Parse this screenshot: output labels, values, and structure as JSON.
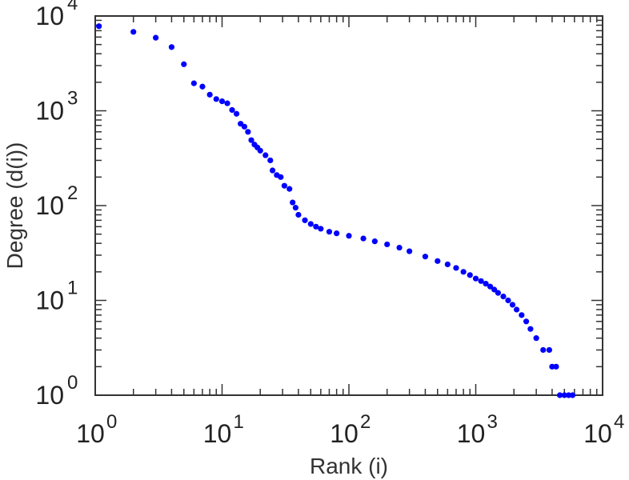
{
  "chart_data": {
    "type": "scatter",
    "title": "",
    "xlabel": "Rank (i)",
    "ylabel": "Degree (d(i))",
    "xscale": "log",
    "yscale": "log",
    "xlim": [
      1,
      10000
    ],
    "ylim": [
      1,
      10000
    ],
    "grid": false,
    "legend": "none",
    "x_tick_labels": [
      {
        "base": "10",
        "exp": "0"
      },
      {
        "base": "10",
        "exp": "1"
      },
      {
        "base": "10",
        "exp": "2"
      },
      {
        "base": "10",
        "exp": "3"
      },
      {
        "base": "10",
        "exp": "4"
      }
    ],
    "y_tick_labels": [
      {
        "base": "10",
        "exp": "0"
      },
      {
        "base": "10",
        "exp": "1"
      },
      {
        "base": "10",
        "exp": "2"
      },
      {
        "base": "10",
        "exp": "3"
      },
      {
        "base": "10",
        "exp": "4"
      }
    ],
    "series": [
      {
        "color": "#0000ff",
        "points": [
          [
            1.07,
            7800
          ],
          [
            2,
            6800
          ],
          [
            3,
            5900
          ],
          [
            4,
            4700
          ],
          [
            5,
            3100
          ],
          [
            6,
            1950
          ],
          [
            7,
            1800
          ],
          [
            8,
            1480
          ],
          [
            9,
            1330
          ],
          [
            10,
            1260
          ],
          [
            11,
            1200
          ],
          [
            12,
            1020
          ],
          [
            13,
            930
          ],
          [
            14,
            730
          ],
          [
            15,
            680
          ],
          [
            16,
            600
          ],
          [
            17,
            490
          ],
          [
            18,
            440
          ],
          [
            19,
            410
          ],
          [
            20,
            380
          ],
          [
            22,
            340
          ],
          [
            24,
            300
          ],
          [
            25,
            235
          ],
          [
            27,
            210
          ],
          [
            29,
            200
          ],
          [
            31,
            162
          ],
          [
            34,
            150
          ],
          [
            36,
            108
          ],
          [
            38,
            95
          ],
          [
            40,
            80
          ],
          [
            45,
            70
          ],
          [
            50,
            64
          ],
          [
            55,
            60
          ],
          [
            60,
            57
          ],
          [
            70,
            53
          ],
          [
            80,
            51
          ],
          [
            100,
            48
          ],
          [
            130,
            45
          ],
          [
            160,
            42
          ],
          [
            200,
            39
          ],
          [
            250,
            36
          ],
          [
            300,
            33
          ],
          [
            400,
            29
          ],
          [
            500,
            26
          ],
          [
            600,
            24
          ],
          [
            700,
            22
          ],
          [
            800,
            20
          ],
          [
            900,
            18.5
          ],
          [
            1000,
            17
          ],
          [
            1100,
            16
          ],
          [
            1200,
            15
          ],
          [
            1300,
            14
          ],
          [
            1400,
            13
          ],
          [
            1500,
            12
          ],
          [
            1650,
            11
          ],
          [
            1800,
            10
          ],
          [
            1950,
            9
          ],
          [
            2100,
            8
          ],
          [
            2300,
            7
          ],
          [
            2500,
            6
          ],
          [
            2700,
            5
          ],
          [
            3000,
            4
          ],
          [
            3400,
            3
          ],
          [
            3800,
            3
          ],
          [
            4000,
            2
          ],
          [
            4300,
            2
          ],
          [
            4600,
            1
          ],
          [
            5000,
            1
          ],
          [
            5400,
            1
          ],
          [
            5800,
            1
          ]
        ]
      }
    ]
  }
}
